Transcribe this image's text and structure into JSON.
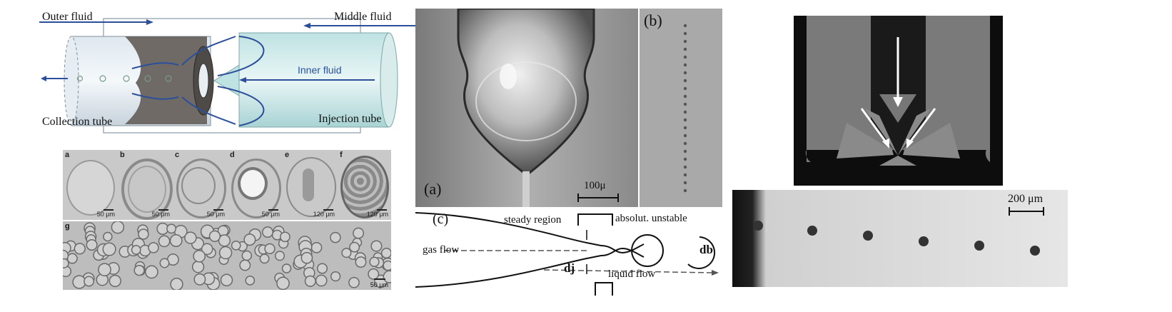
{
  "fig1": {
    "labels": {
      "outer_fluid": "Outer fluid",
      "middle_fluid": "Middle fluid",
      "inner_fluid": "Inner fluid",
      "collection_tube": "Collection tube",
      "injection_tube": "Injection tube"
    },
    "micrographs": [
      {
        "letter": "a",
        "scale": "50 μm"
      },
      {
        "letter": "b",
        "scale": "50 μm"
      },
      {
        "letter": "c",
        "scale": "50 μm"
      },
      {
        "letter": "d",
        "scale": "50 μm"
      },
      {
        "letter": "e",
        "scale": "120 μm"
      },
      {
        "letter": "f",
        "scale": "120 μm"
      }
    ],
    "strip": {
      "letter": "g",
      "scale": "50 μm"
    }
  },
  "fig2": {
    "panel_a": "(a)",
    "panel_b": "(b)",
    "panel_c": "(c)",
    "scale": "100μ",
    "labels": {
      "steady_region": "steady region",
      "absolut_unstable": "absolut. unstable",
      "gas_flow": "gas flow",
      "liquid_flow": "liquid flow",
      "dj": "dj",
      "db": "db"
    }
  },
  "fig3": {
    "scale": "200 μm"
  }
}
